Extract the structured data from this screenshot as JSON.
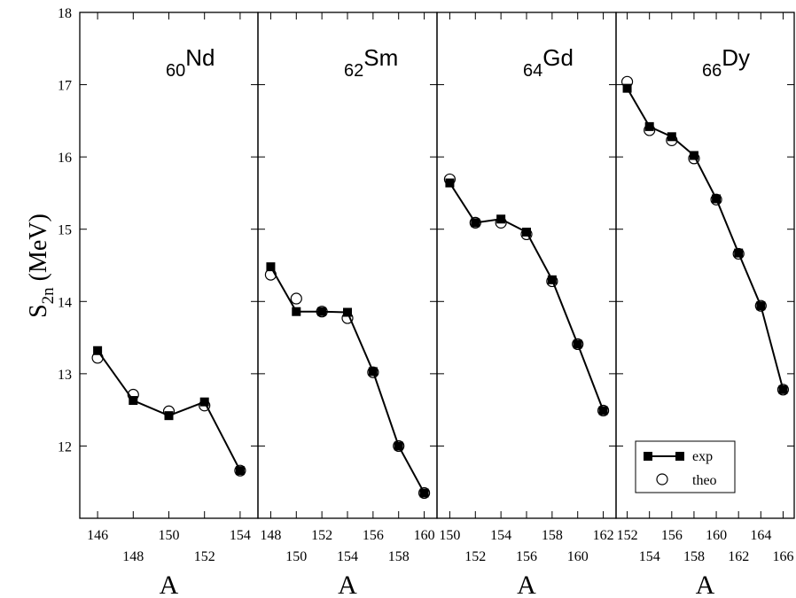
{
  "chart_data": {
    "type": "line",
    "ylabel_main": "S",
    "ylabel_sub": "2n",
    "ylabel_unit": " (MeV)",
    "ylim": [
      11,
      18
    ],
    "yticks": [
      12,
      13,
      14,
      15,
      16,
      17,
      18
    ],
    "legend": {
      "placement": "bottom-right",
      "exp": "exp",
      "theo": "theo"
    },
    "panels": [
      {
        "element_sub": "60",
        "element": "Nd",
        "xlabel": "A",
        "xlim": [
          145,
          155
        ],
        "xticks_upper": [
          146,
          150,
          154
        ],
        "xticks_lower": [
          148,
          152
        ],
        "series": [
          {
            "name": "exp",
            "x": [
              146,
              148,
              150,
              152,
              154
            ],
            "y": [
              13.32,
              12.63,
              12.42,
              12.61,
              11.66
            ]
          },
          {
            "name": "theo",
            "x": [
              146,
              148,
              150,
              152,
              154
            ],
            "y": [
              13.22,
              12.71,
              12.48,
              12.56,
              11.66
            ]
          }
        ]
      },
      {
        "element_sub": "62",
        "element": "Sm",
        "xlabel": "A",
        "xlim": [
          147,
          161
        ],
        "xticks_upper": [
          148,
          152,
          156,
          160
        ],
        "xticks_lower": [
          150,
          154,
          158
        ],
        "series": [
          {
            "name": "exp",
            "x": [
              148,
              150,
              152,
              154,
              156,
              158,
              160
            ],
            "y": [
              14.48,
              13.86,
              13.86,
              13.85,
              13.03,
              12.0,
              11.35
            ]
          },
          {
            "name": "theo",
            "x": [
              148,
              150,
              152,
              154,
              156,
              158,
              160
            ],
            "y": [
              14.37,
              14.04,
              13.86,
              13.77,
              13.02,
              12.0,
              11.35
            ]
          }
        ]
      },
      {
        "element_sub": "64",
        "element": "Gd",
        "xlabel": "A",
        "xlim": [
          149,
          163
        ],
        "xticks_upper": [
          150,
          154,
          158,
          162
        ],
        "xticks_lower": [
          152,
          156,
          160
        ],
        "series": [
          {
            "name": "exp",
            "x": [
              150,
              152,
              154,
              156,
              158,
              160,
              162
            ],
            "y": [
              15.64,
              15.09,
              15.14,
              14.96,
              14.3,
              13.41,
              12.49
            ]
          },
          {
            "name": "theo",
            "x": [
              150,
              152,
              154,
              156,
              158,
              160,
              162
            ],
            "y": [
              15.69,
              15.09,
              15.09,
              14.93,
              14.28,
              13.41,
              12.49
            ]
          }
        ]
      },
      {
        "element_sub": "66",
        "element": "Dy",
        "xlabel": "A",
        "xlim": [
          151,
          167
        ],
        "xticks_upper": [
          152,
          156,
          160,
          164
        ],
        "xticks_lower": [
          154,
          158,
          162,
          166
        ],
        "series": [
          {
            "name": "exp",
            "x": [
              152,
              154,
              156,
              158,
              160,
              162,
              164,
              166
            ],
            "y": [
              16.95,
              16.42,
              16.28,
              16.02,
              15.42,
              14.67,
              13.94,
              12.78
            ]
          },
          {
            "name": "theo",
            "x": [
              152,
              154,
              156,
              158,
              160,
              162,
              164,
              166
            ],
            "y": [
              17.04,
              16.37,
              16.23,
              15.98,
              15.41,
              14.66,
              13.94,
              12.78
            ]
          }
        ]
      }
    ]
  }
}
